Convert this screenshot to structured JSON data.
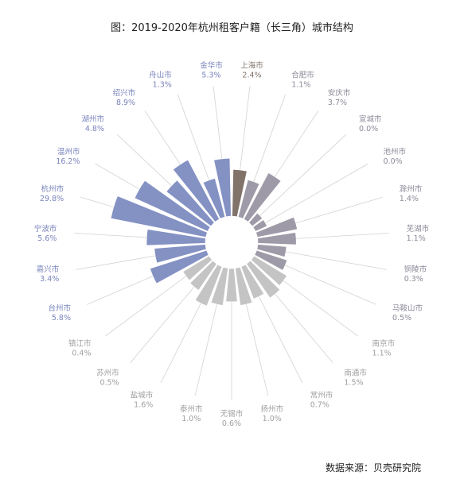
{
  "chart_data": {
    "type": "polar-bar",
    "title": "图：2019-2020年杭州租客户籍（长三角）城市结构",
    "source": "数据来源：贝壳研究院",
    "categories": [
      "上海市",
      "合肥市",
      "安庆市",
      "宣城市",
      "池州市",
      "滁州市",
      "芜湖市",
      "铜陵市",
      "马鞍山市",
      "南京市",
      "南通市",
      "常州市",
      "扬州市",
      "无锡市",
      "泰州市",
      "盐城市",
      "苏州市",
      "镇江市",
      "台州市",
      "嘉兴市",
      "宁波市",
      "杭州市",
      "温州市",
      "湖州市",
      "绍兴市",
      "舟山市",
      "金华市"
    ],
    "value_labels": [
      "2.4%",
      "1.1%",
      "3.7%",
      "0.0%",
      "0.0%",
      "1.4%",
      "1.1%",
      "0.3%",
      "0.5%",
      "1.1%",
      "1.5%",
      "0.7%",
      "1.0%",
      "0.6%",
      "1.0%",
      "1.6%",
      "0.5%",
      "0.4%",
      "5.8%",
      "3.4%",
      "5.6%",
      "29.8%",
      "16.2%",
      "4.8%",
      "8.9%",
      "1.3%",
      "5.3%"
    ],
    "values": [
      2.4,
      1.1,
      3.7,
      0.0,
      0.0,
      1.4,
      1.1,
      0.3,
      0.5,
      1.1,
      1.5,
      0.7,
      1.0,
      0.6,
      1.0,
      1.6,
      0.5,
      0.4,
      5.8,
      3.4,
      5.6,
      29.8,
      16.2,
      4.8,
      8.9,
      1.3,
      5.3
    ],
    "groups": [
      "shanghai",
      "anhui",
      "anhui",
      "anhui",
      "anhui",
      "anhui",
      "anhui",
      "anhui",
      "anhui",
      "jiangsu",
      "jiangsu",
      "jiangsu",
      "jiangsu",
      "jiangsu",
      "jiangsu",
      "jiangsu",
      "jiangsu",
      "jiangsu",
      "zhejiang",
      "zhejiang",
      "zhejiang",
      "zhejiang",
      "zhejiang",
      "zhejiang",
      "zhejiang",
      "zhejiang",
      "zhejiang"
    ],
    "bar_colors": {
      "shanghai": "#82736a",
      "anhui": "#9e9aa8",
      "jiangsu": "#c4c4c4",
      "zhejiang": "#8491c3"
    },
    "label_colors": {
      "shanghai": "#82736a",
      "anhui": "#8d8a99",
      "jiangsu": "#a0a0a0",
      "zhejiang": "#7a84bb"
    },
    "leader_color": "#d2d2d2",
    "scale_note": "bar length not linear in value"
  }
}
